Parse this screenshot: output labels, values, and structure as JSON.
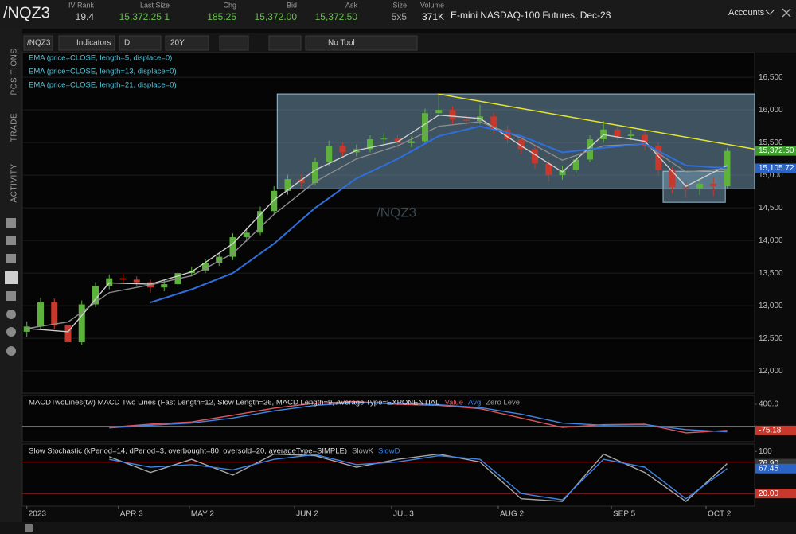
{
  "header": {
    "symbol": "/NQZ3",
    "fields": [
      {
        "label": "IV Rank",
        "value": "19.4"
      },
      {
        "label": "Last Size",
        "value": "15,372.25 1"
      },
      {
        "label": "Chg",
        "value": "185.25"
      },
      {
        "label": "Bid",
        "value": "15,372.00"
      },
      {
        "label": "Ask",
        "value": "15,372.50"
      },
      {
        "label": "Size",
        "value": "5x5"
      },
      {
        "label": "Volume",
        "value": "371K"
      }
    ],
    "description": "E-mini NASDAQ-100 Futures, Dec-23",
    "accounts": "Accounts"
  },
  "sidebar": {
    "tabs": [
      "POSITIONS",
      "TRADE",
      "ACTIVITY"
    ]
  },
  "toolbar": [
    "/NQZ3",
    "Indicators",
    "D",
    "20Y",
    "No Tool"
  ],
  "chart_data": [
    {
      "type": "candlestick",
      "watermark": "/NQZ3",
      "up_color": "#5cb23a",
      "down_color": "#c8382c",
      "xlim": [
        0,
        160
      ],
      "ylim": [
        11660,
        16880
      ],
      "grid": true,
      "yticks": [
        {
          "value": 12000,
          "label": "12,000"
        },
        {
          "value": 12500,
          "label": "12,500"
        },
        {
          "value": 13000,
          "label": "13,000"
        },
        {
          "value": 13500,
          "label": "13,500"
        },
        {
          "value": 14000,
          "label": "14,000"
        },
        {
          "value": 14500,
          "label": "14,500"
        },
        {
          "value": 15000,
          "label": "15,000"
        },
        {
          "value": 15500,
          "label": "15,500"
        },
        {
          "value": 16000,
          "label": "16,000"
        },
        {
          "value": 16500,
          "label": "16,500"
        }
      ],
      "x": [
        1,
        4,
        7,
        10,
        13,
        16,
        19,
        22,
        25,
        28,
        31,
        34,
        37,
        40,
        43,
        46,
        49,
        52,
        55,
        58,
        61,
        64,
        67,
        70,
        73,
        76,
        79,
        82,
        85,
        88,
        91,
        94,
        97,
        100,
        103,
        106,
        109,
        112,
        115,
        118,
        121,
        124,
        127,
        130,
        133,
        136,
        139,
        142,
        145,
        148,
        151,
        154
      ],
      "open": [
        12600,
        12680,
        13050,
        12700,
        12440,
        13020,
        13300,
        13420,
        13400,
        13360,
        13280,
        13330,
        13500,
        13540,
        13660,
        13750,
        14050,
        14120,
        14450,
        14760,
        14940,
        14880,
        15200,
        15450,
        15350,
        15400,
        15550,
        15560,
        15490,
        15520,
        15950,
        16000,
        15850,
        15830,
        15900,
        15700,
        15550,
        15400,
        15180,
        15000,
        15080,
        15240,
        15550,
        15700,
        15600,
        15620,
        15450,
        15080,
        14820,
        14800,
        14870,
        14830
      ],
      "high": [
        12760,
        13120,
        13110,
        12760,
        13080,
        13360,
        13480,
        13490,
        13450,
        13400,
        13390,
        13560,
        13600,
        13720,
        13810,
        14110,
        14200,
        14520,
        14830,
        15010,
        15020,
        15270,
        15530,
        15500,
        15470,
        15610,
        15640,
        15620,
        15590,
        16020,
        16250,
        16060,
        15920,
        16080,
        15960,
        15760,
        15610,
        15450,
        15230,
        15150,
        15300,
        15610,
        15830,
        15760,
        15700,
        15680,
        15500,
        15130,
        14900,
        14950,
        14960,
        15420
      ],
      "low": [
        12520,
        12640,
        12640,
        12330,
        12400,
        12980,
        13250,
        13340,
        13300,
        13200,
        13220,
        13290,
        13450,
        13500,
        13610,
        13700,
        13980,
        14080,
        14400,
        14700,
        14800,
        14840,
        15150,
        15280,
        15290,
        15350,
        15480,
        15420,
        15430,
        15480,
        15900,
        15790,
        15760,
        15780,
        15640,
        15480,
        15330,
        15100,
        14900,
        14930,
        15020,
        15200,
        15500,
        15540,
        15540,
        15380,
        15000,
        14720,
        14650,
        14700,
        14680,
        14800
      ],
      "close": [
        12680,
        13050,
        12700,
        12440,
        13020,
        13300,
        13420,
        13400,
        13360,
        13280,
        13330,
        13500,
        13540,
        13660,
        13750,
        14050,
        14120,
        14450,
        14760,
        14940,
        14880,
        15200,
        15450,
        15350,
        15400,
        15550,
        15560,
        15490,
        15520,
        15950,
        16000,
        15850,
        15830,
        15900,
        15700,
        15550,
        15400,
        15180,
        15000,
        15080,
        15240,
        15550,
        15700,
        15600,
        15620,
        15450,
        15080,
        14820,
        14800,
        14870,
        14830,
        15372.25
      ],
      "series": [
        {
          "name": "EMA (price=CLOSE, length=5, displace=0)",
          "color": "#cfcfcf",
          "x": [
            1,
            10,
            19,
            28,
            37,
            46,
            55,
            64,
            73,
            82,
            91,
            100,
            109,
            118,
            127,
            136,
            145,
            154
          ],
          "values": [
            12650,
            12600,
            13350,
            13330,
            13520,
            13950,
            14620,
            15080,
            15380,
            15510,
            15920,
            15870,
            15450,
            15050,
            15620,
            15520,
            14830,
            15150
          ]
        },
        {
          "name": "EMA (price=CLOSE, length=13, displace=0)",
          "color": "#8c8c8c",
          "x": [
            1,
            10,
            19,
            28,
            37,
            46,
            55,
            64,
            73,
            82,
            91,
            100,
            109,
            118,
            127,
            136,
            145,
            154
          ],
          "values": [
            12650,
            12750,
            13200,
            13320,
            13460,
            13800,
            14400,
            14900,
            15250,
            15450,
            15750,
            15820,
            15570,
            15230,
            15450,
            15480,
            15050,
            15100
          ]
        },
        {
          "name": "EMA (price=CLOSE, length=21, displace=0)",
          "color": "#2f6fdc",
          "x": [
            1,
            10,
            19,
            28,
            37,
            46,
            55,
            64,
            73,
            82,
            91,
            100,
            109,
            118,
            127,
            136,
            145,
            154
          ],
          "values": [
            null,
            null,
            null,
            13050,
            13250,
            13500,
            13950,
            14500,
            14950,
            15250,
            15600,
            15750,
            15600,
            15350,
            15420,
            15480,
            15150,
            15110
          ]
        }
      ],
      "boxes": [
        {
          "x0": 55.7,
          "x1": 160,
          "y0": 14790,
          "y1": 16245
        },
        {
          "x0": 140,
          "x1": 153.6,
          "y0": 14585,
          "y1": 15060
        }
      ],
      "trendline": {
        "x": [
          90.8,
          160
        ],
        "y": [
          16245,
          15400
        ],
        "color": "#e6e62a"
      },
      "price_markers": [
        {
          "value": 15372.5,
          "label": "15,372.50",
          "color": "#3e9e2e"
        },
        {
          "value": 15105.72,
          "label": "15,105.72",
          "color": "#2a63c6"
        }
      ]
    },
    {
      "type": "line",
      "title": "MACDTwoLines(tw) MACD Two Lines (Fast Length=12, Slow Length=26, MACD Length=9, Average Type=EXPONENTIAL",
      "xlim": [
        0,
        160
      ],
      "ylim": [
        -280,
        560
      ],
      "yticks": [
        {
          "value": 400,
          "label": "400.0"
        }
      ],
      "zero_line": {
        "name": "Zero Leve",
        "value": 0,
        "color": "#7a7a7a"
      },
      "series": [
        {
          "name": "Value",
          "color": "#e0555e",
          "x": [
            1,
            10,
            19,
            28,
            37,
            46,
            55,
            64,
            73,
            82,
            91,
            100,
            109,
            118,
            127,
            136,
            145,
            154
          ],
          "values": [
            null,
            null,
            -20,
            40,
            80,
            200,
            330,
            420,
            450,
            400,
            380,
            320,
            150,
            -20,
            30,
            40,
            -120,
            -75.18
          ]
        },
        {
          "name": "Avg",
          "color": "#3f86e6",
          "x": [
            1,
            10,
            19,
            28,
            37,
            46,
            55,
            64,
            73,
            82,
            91,
            100,
            109,
            118,
            127,
            136,
            145,
            154
          ],
          "values": [
            null,
            null,
            -30,
            20,
            60,
            150,
            280,
            380,
            430,
            420,
            390,
            340,
            220,
            60,
            20,
            30,
            -60,
            -100
          ]
        }
      ],
      "price_markers": [
        {
          "value": -75.18,
          "label": "-75.18",
          "color": "#c8382c"
        }
      ]
    },
    {
      "type": "line",
      "title": "Slow Stochastic (kPeriod=14, dPeriod=3, overbought=80, oversold=20, averageType=SIMPLE)",
      "xlim": [
        0,
        160
      ],
      "ylim": [
        -4,
        114
      ],
      "yticks": [
        100
      ],
      "ref_lines": [
        80,
        20
      ],
      "ref_color": "#a82a2a",
      "xticks": [
        {
          "value": 1,
          "label": "2023"
        },
        {
          "value": 21,
          "label": "APR 3"
        },
        {
          "value": 36.5,
          "label": "MAY 2"
        },
        {
          "value": 59.5,
          "label": "JUN 2"
        },
        {
          "value": 80.7,
          "label": "JUL 3"
        },
        {
          "value": 104,
          "label": "AUG 2"
        },
        {
          "value": 128.7,
          "label": "SEP 5"
        },
        {
          "value": 149.4,
          "label": "OCT 2"
        }
      ],
      "series": [
        {
          "name": "SlowK",
          "color": "#a8a8a8",
          "x": [
            1,
            10,
            19,
            28,
            37,
            46,
            55,
            64,
            73,
            82,
            91,
            100,
            109,
            118,
            127,
            136,
            145,
            154
          ],
          "values": [
            null,
            null,
            90,
            60,
            85,
            55,
            95,
            92,
            70,
            85,
            95,
            80,
            10,
            5,
            95,
            60,
            5,
            76.9
          ]
        },
        {
          "name": "SlowD",
          "color": "#3f86e6",
          "x": [
            1,
            10,
            19,
            28,
            37,
            46,
            55,
            64,
            73,
            82,
            91,
            100,
            109,
            118,
            127,
            136,
            145,
            154
          ],
          "values": [
            null,
            null,
            85,
            70,
            75,
            65,
            85,
            94,
            75,
            80,
            92,
            85,
            20,
            8,
            85,
            70,
            10,
            67.45
          ]
        }
      ],
      "price_markers": [
        {
          "value": 76.9,
          "label": "76.90",
          "color": "#3a3a3a"
        },
        {
          "value": 67.45,
          "label": "67.45",
          "color": "#2a63c6"
        },
        {
          "value": 20,
          "label": "20.00",
          "color": "#c8382c"
        }
      ]
    }
  ]
}
